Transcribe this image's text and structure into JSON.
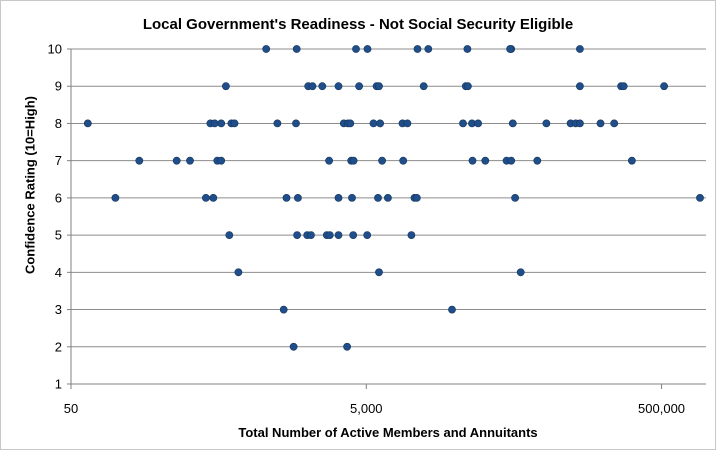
{
  "chart_data": {
    "type": "scatter",
    "title": "Local Government's Readiness - Not Social Security Eligible",
    "xlabel": "Total Number of Active Members and Annuitants",
    "ylabel": "Confidence Rating (10=High)",
    "x_scale": "log",
    "xlim": [
      50,
      1000000
    ],
    "ylim": [
      1,
      10
    ],
    "x_tick_values": [
      50,
      5000,
      500000
    ],
    "x_tick_labels": [
      "50",
      "5,000",
      "500,000"
    ],
    "y_ticks": [
      1,
      2,
      3,
      4,
      5,
      6,
      7,
      8,
      9,
      10
    ],
    "grid": true,
    "marker_color": "#1f4e8a",
    "points": [
      {
        "x": 1050,
        "y": 10
      },
      {
        "x": 1690,
        "y": 10
      },
      {
        "x": 4260,
        "y": 10
      },
      {
        "x": 5100,
        "y": 10
      },
      {
        "x": 11120,
        "y": 10
      },
      {
        "x": 13150,
        "y": 10
      },
      {
        "x": 24200,
        "y": 10
      },
      {
        "x": 47900,
        "y": 10
      },
      {
        "x": 47100,
        "y": 10
      },
      {
        "x": 140000,
        "y": 10
      },
      {
        "x": 560,
        "y": 9
      },
      {
        "x": 2020,
        "y": 9
      },
      {
        "x": 2160,
        "y": 9
      },
      {
        "x": 2520,
        "y": 9
      },
      {
        "x": 3240,
        "y": 9
      },
      {
        "x": 4470,
        "y": 9
      },
      {
        "x": 5870,
        "y": 9
      },
      {
        "x": 6100,
        "y": 9
      },
      {
        "x": 12240,
        "y": 9
      },
      {
        "x": 23600,
        "y": 9
      },
      {
        "x": 24400,
        "y": 9
      },
      {
        "x": 140000,
        "y": 9
      },
      {
        "x": 266000,
        "y": 9
      },
      {
        "x": 277000,
        "y": 9
      },
      {
        "x": 520000,
        "y": 9
      },
      {
        "x": 65,
        "y": 8
      },
      {
        "x": 440,
        "y": 8
      },
      {
        "x": 470,
        "y": 8
      },
      {
        "x": 520,
        "y": 8
      },
      {
        "x": 610,
        "y": 8
      },
      {
        "x": 640,
        "y": 8
      },
      {
        "x": 1250,
        "y": 8
      },
      {
        "x": 1670,
        "y": 8
      },
      {
        "x": 3520,
        "y": 8
      },
      {
        "x": 3760,
        "y": 8
      },
      {
        "x": 3900,
        "y": 8
      },
      {
        "x": 5600,
        "y": 8
      },
      {
        "x": 6200,
        "y": 8
      },
      {
        "x": 8800,
        "y": 8
      },
      {
        "x": 9500,
        "y": 8
      },
      {
        "x": 22600,
        "y": 8
      },
      {
        "x": 26000,
        "y": 8
      },
      {
        "x": 28600,
        "y": 8
      },
      {
        "x": 49100,
        "y": 8
      },
      {
        "x": 83000,
        "y": 8
      },
      {
        "x": 121000,
        "y": 8
      },
      {
        "x": 131000,
        "y": 8
      },
      {
        "x": 140000,
        "y": 8
      },
      {
        "x": 193000,
        "y": 8
      },
      {
        "x": 239000,
        "y": 8
      },
      {
        "x": 145,
        "y": 7
      },
      {
        "x": 260,
        "y": 7
      },
      {
        "x": 320,
        "y": 7
      },
      {
        "x": 490,
        "y": 7
      },
      {
        "x": 520,
        "y": 7
      },
      {
        "x": 2800,
        "y": 7
      },
      {
        "x": 3950,
        "y": 7
      },
      {
        "x": 4100,
        "y": 7
      },
      {
        "x": 6400,
        "y": 7
      },
      {
        "x": 8900,
        "y": 7
      },
      {
        "x": 26200,
        "y": 7
      },
      {
        "x": 32000,
        "y": 7
      },
      {
        "x": 44600,
        "y": 7
      },
      {
        "x": 47900,
        "y": 7
      },
      {
        "x": 72000,
        "y": 7
      },
      {
        "x": 315000,
        "y": 7
      },
      {
        "x": 100,
        "y": 6
      },
      {
        "x": 410,
        "y": 6
      },
      {
        "x": 460,
        "y": 6
      },
      {
        "x": 1440,
        "y": 6
      },
      {
        "x": 1720,
        "y": 6
      },
      {
        "x": 3240,
        "y": 6
      },
      {
        "x": 4000,
        "y": 6
      },
      {
        "x": 6000,
        "y": 6
      },
      {
        "x": 7000,
        "y": 6
      },
      {
        "x": 10600,
        "y": 6
      },
      {
        "x": 11000,
        "y": 6
      },
      {
        "x": 50900,
        "y": 6
      },
      {
        "x": 910000,
        "y": 6
      },
      {
        "x": 590,
        "y": 5
      },
      {
        "x": 1700,
        "y": 5
      },
      {
        "x": 1990,
        "y": 5
      },
      {
        "x": 2110,
        "y": 5
      },
      {
        "x": 2700,
        "y": 5
      },
      {
        "x": 2830,
        "y": 5
      },
      {
        "x": 3240,
        "y": 5
      },
      {
        "x": 4080,
        "y": 5
      },
      {
        "x": 5070,
        "y": 5
      },
      {
        "x": 10100,
        "y": 5
      },
      {
        "x": 680,
        "y": 4
      },
      {
        "x": 6100,
        "y": 4
      },
      {
        "x": 55600,
        "y": 4
      },
      {
        "x": 1380,
        "y": 3
      },
      {
        "x": 19050,
        "y": 3
      },
      {
        "x": 1610,
        "y": 2
      },
      {
        "x": 3710,
        "y": 2
      }
    ]
  }
}
